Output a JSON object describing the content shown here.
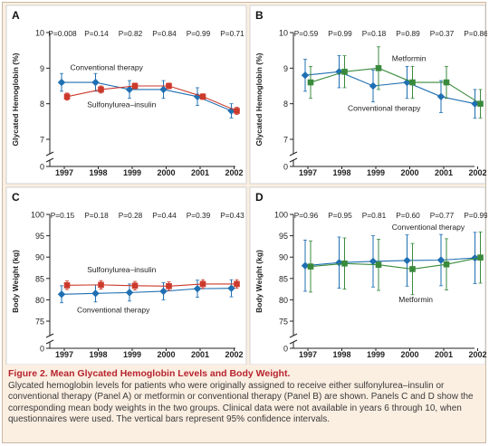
{
  "colors": {
    "panel_bg": "#ffffff",
    "figure_bg": "#fbefe2",
    "caption_title": "#b8232e",
    "conventional_blue": "#1f6fb2",
    "sulfonylurea_red": "#cc3a2c",
    "metformin_green": "#3a8a3c"
  },
  "icons": {
    "blue_marker": "diamond-marker",
    "red_marker": "square-marker",
    "green_marker": "square-marker"
  },
  "caption": {
    "title": "Figure 2. Mean Glycated Hemoglobin Levels and Body Weight.",
    "body": "Glycated hemoglobin levels for patients who were originally assigned to receive either sulfonylurea–insulin or conventional therapy (Panel A) or metformin or conventional therapy (Panel B) are shown. Panels C and D show the corresponding mean body weights in the two groups. Clinical data were not available in years 6 through 10, when questionnaires were used. The vertical bars represent 95% confidence intervals."
  },
  "chart_data": [
    {
      "panel": "A",
      "type": "line",
      "ylabel": "Glycated Hemoglobin (%)",
      "x": [
        "1997",
        "1998",
        "1999",
        "2000",
        "2001",
        "2002"
      ],
      "p_values": [
        "P=0.008",
        "P=0.14",
        "P=0.82",
        "P=0.84",
        "P=0.99",
        "P=0.71"
      ],
      "ylim": [
        6.5,
        10
      ],
      "yticks": [
        7,
        8,
        9,
        10
      ],
      "tick_labels": [
        "7",
        "8",
        "9",
        "10"
      ],
      "zero_label": "0",
      "axis_break": true,
      "series": [
        {
          "name": "Conventional therapy",
          "marker": "diamond",
          "color": "#1f6fb2",
          "values": [
            8.6,
            8.6,
            8.4,
            8.4,
            8.2,
            7.8
          ],
          "ci_low": [
            8.35,
            8.35,
            8.15,
            8.15,
            7.95,
            7.6
          ],
          "ci_high": [
            8.85,
            8.85,
            8.65,
            8.65,
            8.45,
            8.0
          ]
        },
        {
          "name": "Sulfonylurea–insulin",
          "marker": "square",
          "color": "#cc3a2c",
          "values": [
            8.2,
            8.4,
            8.5,
            8.5,
            8.2,
            7.8
          ],
          "ci_low": [
            8.1,
            8.3,
            8.42,
            8.42,
            8.12,
            7.7
          ],
          "ci_high": [
            8.3,
            8.5,
            8.58,
            8.58,
            8.28,
            7.9
          ]
        }
      ],
      "annotations": [
        {
          "text": "Conventional therapy",
          "x": 0.6,
          "y": 8.95
        },
        {
          "text": "Sulfonylurea–insulin",
          "x": 1.1,
          "y": 7.9
        }
      ]
    },
    {
      "panel": "B",
      "type": "line",
      "ylabel": "Glycated Hemoglobin (%)",
      "x": [
        "1997",
        "1998",
        "1999",
        "2000",
        "2001",
        "2002"
      ],
      "p_values": [
        "P=0.59",
        "P=0.99",
        "P=0.18",
        "P=0.89",
        "P=0.37",
        "P=0.86"
      ],
      "ylim": [
        6.5,
        10
      ],
      "yticks": [
        7,
        8,
        9,
        10
      ],
      "tick_labels": [
        "7",
        "8",
        "9",
        "10"
      ],
      "zero_label": "0",
      "axis_break": true,
      "series": [
        {
          "name": "Conventional therapy",
          "marker": "diamond",
          "color": "#1f6fb2",
          "values": [
            8.8,
            8.9,
            8.5,
            8.6,
            8.2,
            8.0
          ],
          "ci_low": [
            8.35,
            8.45,
            8.05,
            8.15,
            7.75,
            7.6
          ],
          "ci_high": [
            9.25,
            9.35,
            8.95,
            9.05,
            8.65,
            8.4
          ]
        },
        {
          "name": "Metformin",
          "marker": "square",
          "color": "#3a8a3c",
          "values": [
            8.6,
            8.9,
            9.0,
            8.6,
            8.6,
            8.0
          ],
          "ci_low": [
            8.15,
            8.45,
            8.4,
            8.15,
            8.15,
            7.6
          ],
          "ci_high": [
            9.05,
            9.35,
            9.6,
            9.05,
            9.05,
            8.4
          ]
        }
      ],
      "annotations": [
        {
          "text": "Metformin",
          "x": 2.9,
          "y": 9.2
        },
        {
          "text": "Conventional therapy",
          "x": 1.6,
          "y": 7.8
        }
      ]
    },
    {
      "panel": "C",
      "type": "line",
      "ylabel": "Body Weight (kg)",
      "x": [
        "1997",
        "1998",
        "1999",
        "2000",
        "2001",
        "2002"
      ],
      "p_values": [
        "P=0.15",
        "P=0.18",
        "P=0.28",
        "P=0.44",
        "P=0.39",
        "P=0.43"
      ],
      "ylim": [
        73,
        100
      ],
      "yticks": [
        75,
        80,
        85,
        90,
        95,
        100
      ],
      "tick_labels": [
        "75",
        "80",
        "85",
        "90",
        "95",
        "100"
      ],
      "zero_label": "0",
      "axis_break": true,
      "series": [
        {
          "name": "Conventional therapy",
          "marker": "diamond",
          "color": "#1f6fb2",
          "values": [
            81.3,
            81.5,
            81.7,
            82.0,
            82.6,
            82.7
          ],
          "ci_low": [
            79.3,
            79.5,
            79.7,
            80.0,
            80.6,
            80.7
          ],
          "ci_high": [
            83.3,
            83.5,
            83.7,
            84.0,
            84.6,
            84.7
          ]
        },
        {
          "name": "Sulfonylurea–insulin",
          "marker": "square",
          "color": "#cc3a2c",
          "values": [
            83.4,
            83.5,
            83.3,
            83.2,
            83.7,
            83.7
          ],
          "ci_low": [
            82.4,
            82.5,
            82.3,
            82.2,
            82.7,
            82.7
          ],
          "ci_high": [
            84.4,
            84.5,
            84.3,
            84.2,
            84.7,
            84.7
          ]
        }
      ],
      "annotations": [
        {
          "text": "Sulfonylurea–insulin",
          "x": 1.1,
          "y": 86.4
        },
        {
          "text": "Conventional therapy",
          "x": 0.8,
          "y": 77.0
        }
      ]
    },
    {
      "panel": "D",
      "type": "line",
      "ylabel": "Body Weight (kg)",
      "x": [
        "1997",
        "1998",
        "1999",
        "2000",
        "2001",
        "2002"
      ],
      "p_values": [
        "P=0.96",
        "P=0.95",
        "P=0.81",
        "P=0.60",
        "P=0.77",
        "P=0.99"
      ],
      "ylim": [
        73,
        100
      ],
      "yticks": [
        75,
        80,
        85,
        90,
        95,
        100
      ],
      "tick_labels": [
        "75",
        "80",
        "85",
        "90",
        "95",
        "100"
      ],
      "zero_label": "0",
      "axis_break": true,
      "series": [
        {
          "name": "Conventional therapy",
          "marker": "diamond",
          "color": "#1f6fb2",
          "values": [
            88.0,
            88.7,
            89.0,
            89.2,
            89.3,
            89.8
          ],
          "ci_low": [
            82.0,
            82.7,
            83.0,
            83.2,
            83.3,
            83.8
          ],
          "ci_high": [
            94.0,
            94.7,
            95.0,
            95.2,
            95.3,
            95.8
          ]
        },
        {
          "name": "Metformin",
          "marker": "square",
          "color": "#3a8a3c",
          "values": [
            87.8,
            88.5,
            88.2,
            87.2,
            88.3,
            89.9
          ],
          "ci_low": [
            81.8,
            82.5,
            82.2,
            81.2,
            82.3,
            83.9
          ],
          "ci_high": [
            93.8,
            94.5,
            94.2,
            93.2,
            94.3,
            95.9
          ]
        }
      ],
      "annotations": [
        {
          "text": "Conventional therapy",
          "x": 2.9,
          "y": 96.4
        },
        {
          "text": "Metformin",
          "x": 3.1,
          "y": 79.5
        }
      ]
    }
  ]
}
